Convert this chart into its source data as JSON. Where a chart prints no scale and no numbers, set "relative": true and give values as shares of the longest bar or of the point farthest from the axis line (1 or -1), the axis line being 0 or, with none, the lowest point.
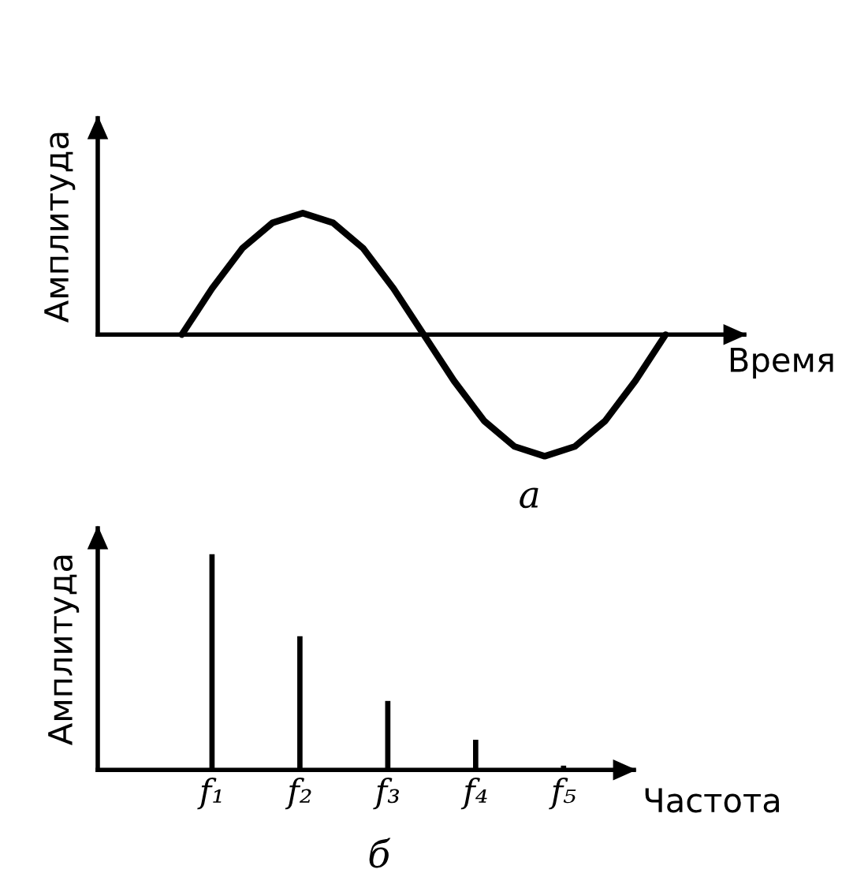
{
  "chart_data": [
    {
      "type": "line",
      "relative": true,
      "ylabel": "Амплитуда",
      "xlabel": "Время",
      "annotations": [
        "а"
      ],
      "categories": [
        null,
        null,
        null,
        null,
        null,
        null,
        null,
        null,
        null,
        null,
        null,
        null,
        null,
        null,
        null,
        null,
        null
      ],
      "series": [
        {
          "color": "#000000",
          "values": [
            0,
            0.38,
            0.71,
            0.92,
            1,
            0.92,
            0.71,
            0.38,
            0,
            -0.38,
            -0.71,
            -0.92,
            -1,
            -0.92,
            -0.71,
            -0.38,
            0
          ]
        }
      ]
    },
    {
      "type": "bar",
      "relative": true,
      "ylabel": "Амплитуда",
      "xlabel": "Частота",
      "annotations": [
        "б"
      ],
      "color": "#000000",
      "categories": [
        "f₁",
        "f₂",
        "f₃",
        "f₄",
        "f₅"
      ],
      "values": [
        1,
        0.62,
        0.32,
        0.14,
        0.02
      ]
    }
  ]
}
